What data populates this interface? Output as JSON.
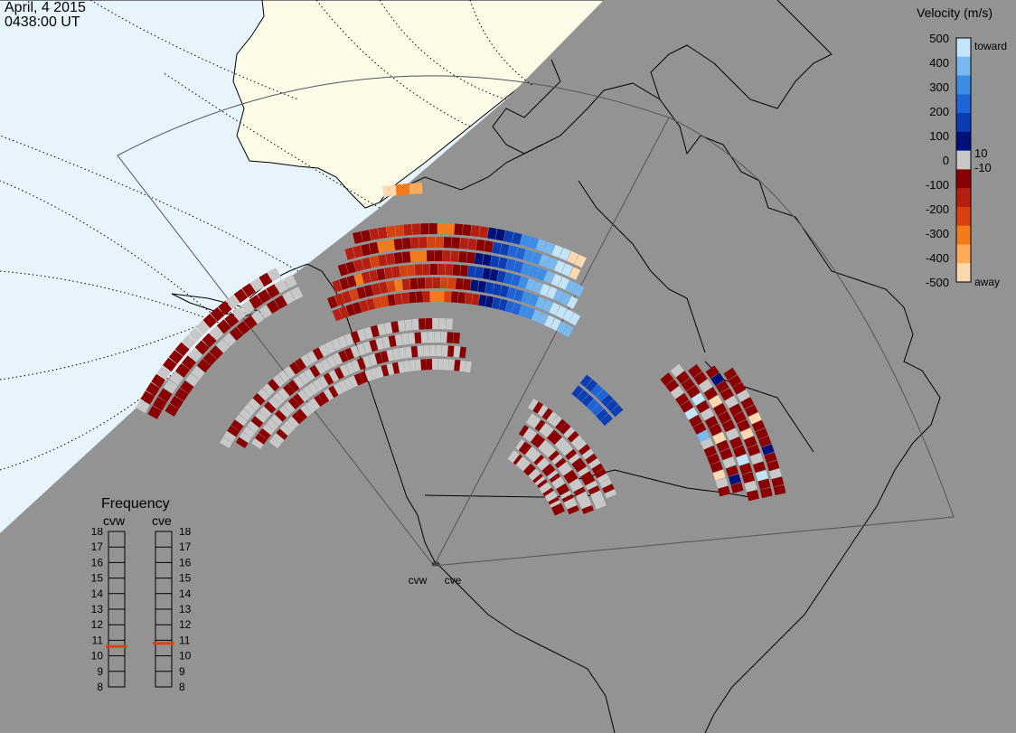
{
  "header": {
    "date": "April, 4 2015",
    "time": "0438:00 UT"
  },
  "velocity_legend": {
    "title": "Velocity (m/s)",
    "ticks": [
      "500",
      "400",
      "300",
      "200",
      "100",
      "10",
      "0",
      "-10",
      "-100",
      "-200",
      "-300",
      "-400",
      "-500"
    ],
    "toward_label": "toward",
    "away_label": "away",
    "colors": [
      "#ffd8b0",
      "#ffab5a",
      "#f47a1a",
      "#d84010",
      "#b81e10",
      "#8a0000",
      "#c8c8c8",
      "#00107a",
      "#0a3cb4",
      "#1e64d8",
      "#3c8ce8",
      "#7ab8f0",
      "#c4e4fa"
    ]
  },
  "frequency_panel": {
    "title": "Frequency",
    "radars": [
      {
        "label": "cvw",
        "frequency_mhz": 10.6
      },
      {
        "label": "cve",
        "frequency_mhz": 10.8
      }
    ],
    "scale_labels": [
      "18",
      "17",
      "16",
      "15",
      "14",
      "13",
      "12",
      "11",
      "10",
      "9",
      "8"
    ],
    "marker_color": "#e04010"
  },
  "radar_sites": [
    {
      "label": "cvw"
    },
    {
      "label": "cve"
    }
  ],
  "colors": {
    "night_shade": "#939393",
    "ocean_day": "#e8f4fc",
    "land_day": "#fbfbe8",
    "ground_scatter": "#c8c8c8",
    "coastline": "#000000"
  }
}
